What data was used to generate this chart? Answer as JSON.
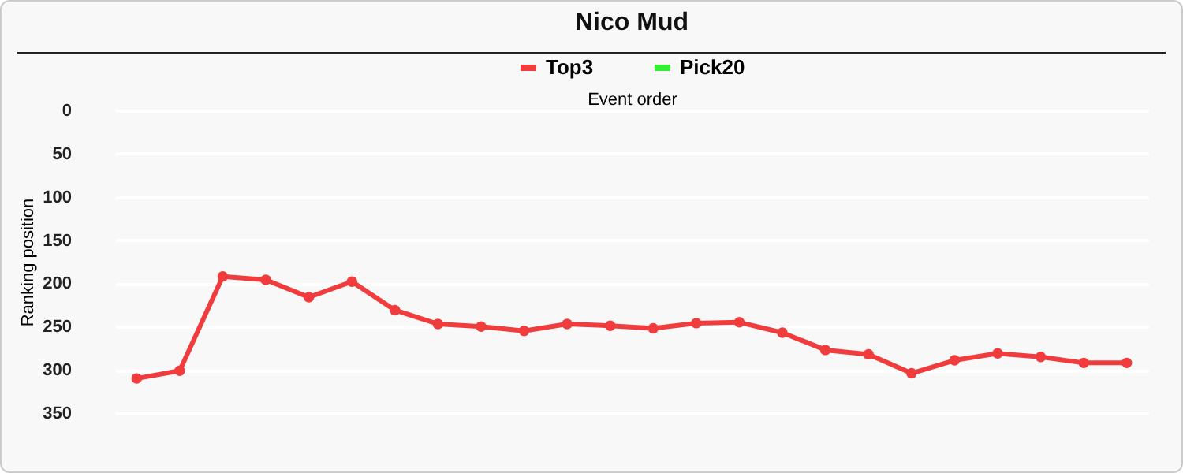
{
  "chart_data": {
    "type": "line",
    "title": "Nico Mud",
    "xlabel": "Event order",
    "ylabel": "Ranking position",
    "categories": [
      null,
      null,
      null,
      null,
      null,
      null,
      null,
      null,
      null,
      null,
      null,
      null,
      null,
      null,
      null,
      null,
      null,
      null,
      null,
      null,
      null,
      null,
      null,
      null
    ],
    "series": [
      {
        "name": "Top3",
        "color": "#f03c3c",
        "values": [
          310,
          301,
          192,
          196,
          216,
          198,
          231,
          247,
          250,
          255,
          247,
          249,
          252,
          246,
          245,
          257,
          277,
          282,
          304,
          289,
          281,
          285,
          292,
          292
        ]
      },
      {
        "name": "Pick20",
        "color": "#33ee33",
        "values": [
          null,
          null,
          null,
          null,
          null,
          null,
          null,
          null,
          null,
          null,
          null,
          null,
          null,
          null,
          null,
          null,
          null,
          null,
          null,
          null,
          null,
          null,
          null,
          null
        ]
      }
    ],
    "ylim": [
      350,
      0
    ],
    "yticks": [
      0,
      50,
      100,
      150,
      200,
      250,
      300,
      350
    ],
    "grid": "y",
    "legend": "top",
    "marker": "circle",
    "tick_labels": "y"
  }
}
